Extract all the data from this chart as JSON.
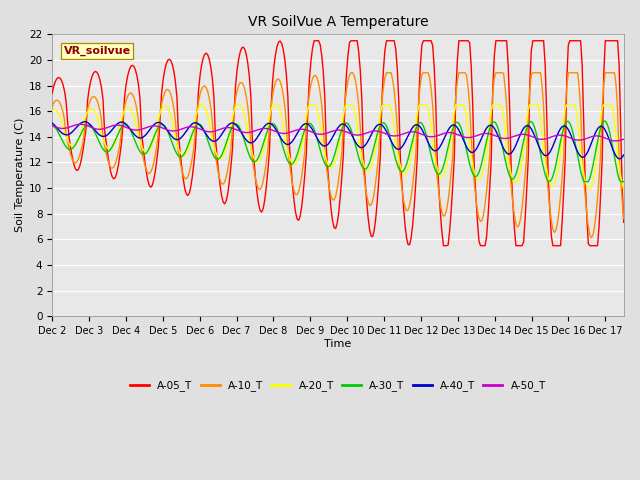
{
  "title": "VR SoilVue A Temperature",
  "ylabel": "Soil Temperature (C)",
  "xlabel": "Time",
  "legend_label": "VR_soilvue",
  "ylim": [
    0,
    22
  ],
  "series_colors": {
    "A-05_T": "#FF0000",
    "A-10_T": "#FF8C00",
    "A-20_T": "#FFFF00",
    "A-30_T": "#00CC00",
    "A-40_T": "#0000CC",
    "A-50_T": "#CC00CC"
  },
  "xtick_labels": [
    "Dec 2",
    "Dec 3",
    "Dec 4",
    "Dec 5",
    "Dec 6",
    "Dec 7",
    "Dec 8",
    "Dec 9",
    "Dec 10",
    "Dec 11",
    "Dec 12",
    "Dec 13",
    "Dec 14",
    "Dec 15",
    "Dec 16",
    "Dec 17"
  ],
  "ytick_values": [
    0,
    2,
    4,
    6,
    8,
    10,
    12,
    14,
    16,
    18,
    20,
    22
  ],
  "background_color": "#E0E0E0",
  "plot_bg_color": "#E8E8E8",
  "grid_color": "#FFFFFF",
  "line_width": 1.0
}
